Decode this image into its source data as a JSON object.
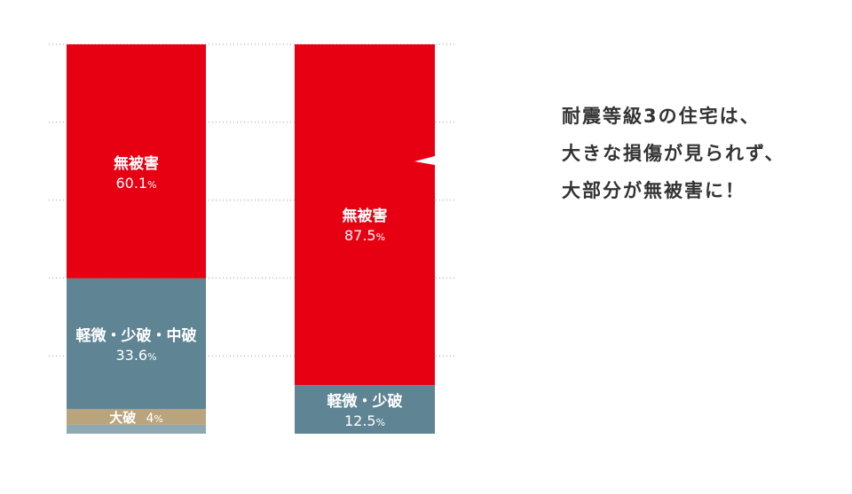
{
  "colors": {
    "no_damage": "#e60012",
    "minor_damage": "#5f8493",
    "major_damage": "#b9a47d",
    "collapse": "#8fa9b4",
    "gridline": "#9a9a9a"
  },
  "chart_data": {
    "type": "bar",
    "stacked": true,
    "grid": true,
    "ylim": [
      0,
      100
    ],
    "categories": [
      "",
      ""
    ],
    "bars": [
      {
        "segments": [
          {
            "label": "無被害",
            "value": 60.1,
            "color_key": "no_damage"
          },
          {
            "label": "軽微・少破・中破",
            "value": 33.6,
            "color_key": "minor_damage"
          },
          {
            "label": "大破",
            "value": 4,
            "color_key": "major_damage"
          },
          {
            "label": "",
            "value": 2.3,
            "color_key": "collapse"
          }
        ]
      },
      {
        "segments": [
          {
            "label": "無被害",
            "value": 87.5,
            "color_key": "no_damage"
          },
          {
            "label": "軽微・少破",
            "value": 12.5,
            "color_key": "minor_damage"
          }
        ]
      }
    ]
  },
  "labels": {
    "bar1_no_damage_name": "無被害",
    "bar1_no_damage_value": "60.1",
    "bar1_minor_name": "軽微・少破・中破",
    "bar1_minor_value": "33.6",
    "bar1_major_name": "大破",
    "bar1_major_value": "4",
    "bar2_no_damage_name": "無被害",
    "bar2_no_damage_value": "87.5",
    "bar2_minor_name": "軽微・少破",
    "bar2_minor_value": "12.5",
    "percent_sign": "%"
  },
  "caption": {
    "line1": "耐震等級3の住宅は、",
    "line2": "大きな損傷が見られず、",
    "line3": "大部分が無被害に！"
  }
}
